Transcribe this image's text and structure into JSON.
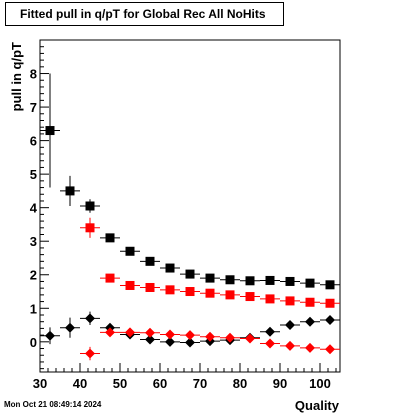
{
  "chart_data": {
    "type": "scatter",
    "title": "Fitted pull in q/pT for Global Rec All NoHits",
    "xlabel": "Quality",
    "ylabel": "pull in q/pT",
    "xlim": [
      30,
      105
    ],
    "ylim": [
      -0.9,
      9.0
    ],
    "x_ticks": [
      30,
      40,
      50,
      60,
      70,
      80,
      90,
      100
    ],
    "y_ticks": [
      0,
      1,
      2,
      3,
      4,
      5,
      6,
      7,
      8
    ],
    "grid": false,
    "legend": "none",
    "series": [
      {
        "marker": "square",
        "color": "#000000",
        "x": [
          32.5,
          37.5,
          42.5,
          47.5,
          52.5,
          57.5,
          62.5,
          67.5,
          72.5,
          77.5,
          82.5,
          87.5,
          92.5,
          97.5,
          102.5
        ],
        "y": [
          6.3,
          4.5,
          4.05,
          3.1,
          2.7,
          2.4,
          2.2,
          2.02,
          1.9,
          1.85,
          1.82,
          1.83,
          1.8,
          1.75,
          1.7
        ],
        "err": [
          1.7,
          0.45,
          0.2,
          0.1,
          0.08,
          0.07,
          0.07,
          0.06,
          0.06,
          0.06,
          0.06,
          0.06,
          0.06,
          0.06,
          0.06
        ]
      },
      {
        "marker": "square",
        "color": "#ff0000",
        "x": [
          42.5,
          47.5,
          52.5,
          57.5,
          62.5,
          67.5,
          72.5,
          77.5,
          82.5,
          87.5,
          92.5,
          97.5,
          102.5
        ],
        "y": [
          3.4,
          1.9,
          1.68,
          1.62,
          1.55,
          1.5,
          1.45,
          1.4,
          1.35,
          1.28,
          1.22,
          1.18,
          1.15
        ],
        "err": [
          0.3,
          0.1,
          0.07,
          0.06,
          0.06,
          0.05,
          0.05,
          0.05,
          0.05,
          0.05,
          0.05,
          0.05,
          0.05
        ]
      },
      {
        "marker": "diamond",
        "color": "#000000",
        "x": [
          32.5,
          37.5,
          42.5,
          47.5,
          52.5,
          57.5,
          62.5,
          67.5,
          72.5,
          77.5,
          82.5,
          87.5,
          92.5,
          97.5,
          102.5
        ],
        "y": [
          0.18,
          0.42,
          0.7,
          0.42,
          0.22,
          0.07,
          0.0,
          -0.02,
          0.02,
          0.05,
          0.12,
          0.3,
          0.5,
          0.6,
          0.65
        ],
        "err": [
          0.25,
          0.3,
          0.2,
          0.1,
          0.07,
          0.06,
          0.05,
          0.05,
          0.05,
          0.05,
          0.05,
          0.05,
          0.05,
          0.05,
          0.05
        ]
      },
      {
        "marker": "diamond",
        "color": "#ff0000",
        "x": [
          42.5,
          47.5,
          52.5,
          57.5,
          62.5,
          67.5,
          72.5,
          77.5,
          82.5,
          87.5,
          92.5,
          97.5,
          102.5
        ],
        "y": [
          -0.35,
          0.28,
          0.28,
          0.27,
          0.22,
          0.2,
          0.15,
          0.12,
          0.1,
          -0.05,
          -0.12,
          -0.18,
          -0.22
        ],
        "err": [
          0.2,
          0.08,
          0.06,
          0.05,
          0.05,
          0.05,
          0.05,
          0.05,
          0.05,
          0.05,
          0.05,
          0.05,
          0.05
        ]
      }
    ]
  },
  "footer": {
    "date": "Mon Oct 21 08:49:14 2024"
  }
}
